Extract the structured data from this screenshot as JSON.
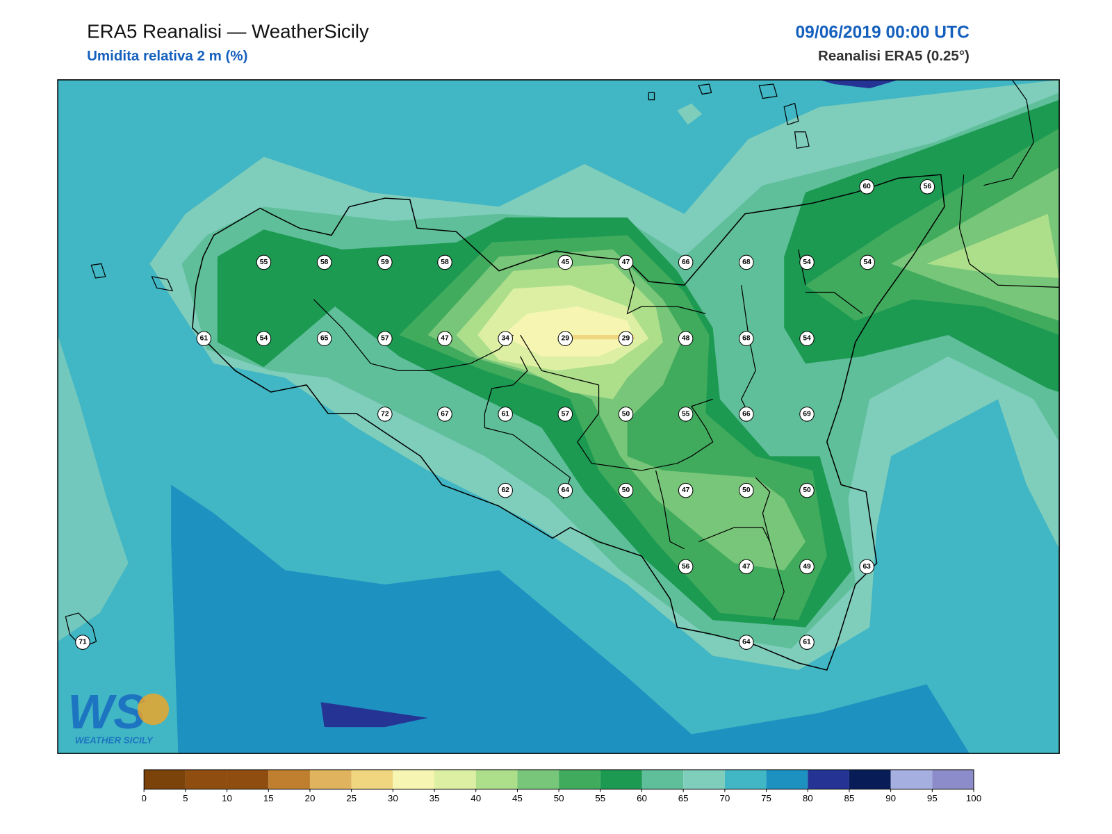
{
  "header": {
    "title": "ERA5 Reanalisi — WeatherSicily",
    "subtitle": "Umidita relativa 2 m (%)",
    "date": "09/06/2019 00:00 UTC",
    "source": "Reanalisi ERA5 (0.25°)"
  },
  "stations": [
    55,
    58,
    59,
    58,
    45,
    47,
    66,
    68,
    54,
    54,
    60,
    56,
    61,
    54,
    65,
    57,
    47,
    34,
    29,
    29,
    48,
    68,
    54,
    72,
    67,
    61,
    57,
    50,
    55,
    66,
    69,
    62,
    64,
    50,
    47,
    50,
    50,
    56,
    47,
    49,
    63,
    71,
    64,
    61
  ],
  "colorbar": {
    "ticks": [
      0,
      5,
      10,
      15,
      20,
      25,
      30,
      35,
      40,
      45,
      50,
      55,
      60,
      65,
      70,
      75,
      80,
      85,
      90,
      95,
      100
    ],
    "colors": [
      "#7b430a",
      "#8f4d10",
      "#8f4d10",
      "#bf7f2e",
      "#e0b35e",
      "#f0d67f",
      "#f6f6b2",
      "#dcefa3",
      "#addf8b",
      "#78c679",
      "#41ab5d",
      "#1d9a52",
      "#5fbf9a",
      "#7fcdbb",
      "#41b6c4",
      "#1d91c0",
      "#253494",
      "#081d58",
      "#a6b0e0",
      "#8c8cca"
    ]
  },
  "logo": {
    "mark": "WS",
    "text": "WEATHER SICILY"
  }
}
